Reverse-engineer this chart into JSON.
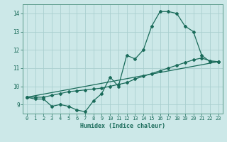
{
  "xlabel": "Humidex (Indice chaleur)",
  "ylabel": "",
  "bg_color": "#cce8e8",
  "grid_color": "#aacfcf",
  "line_color": "#1a6b5a",
  "spine_color": "#5a9a8a",
  "ylim": [
    8.5,
    14.5
  ],
  "xlim": [
    -0.5,
    23.5
  ],
  "yticks": [
    9,
    10,
    11,
    12,
    13,
    14
  ],
  "xticks": [
    0,
    1,
    2,
    3,
    4,
    5,
    6,
    7,
    8,
    9,
    10,
    11,
    12,
    13,
    14,
    15,
    16,
    17,
    18,
    19,
    20,
    21,
    22,
    23
  ],
  "series1_x": [
    0,
    1,
    2,
    3,
    4,
    5,
    6,
    7,
    8,
    9,
    10,
    11,
    12,
    13,
    14,
    15,
    16,
    17,
    18,
    19,
    20,
    21,
    22,
    23
  ],
  "series1_y": [
    9.4,
    9.3,
    9.3,
    8.9,
    9.0,
    8.9,
    8.7,
    8.6,
    9.2,
    9.6,
    10.5,
    10.0,
    11.7,
    11.5,
    12.0,
    13.3,
    14.1,
    14.1,
    14.0,
    13.3,
    13.0,
    11.7,
    11.35,
    11.35
  ],
  "series2_x": [
    0,
    1,
    2,
    3,
    4,
    5,
    6,
    7,
    8,
    9,
    10,
    11,
    12,
    13,
    14,
    15,
    16,
    17,
    18,
    19,
    20,
    21,
    22,
    23
  ],
  "series2_y": [
    9.4,
    9.4,
    9.4,
    9.5,
    9.6,
    9.7,
    9.75,
    9.8,
    9.85,
    9.9,
    10.0,
    10.1,
    10.2,
    10.4,
    10.55,
    10.7,
    10.85,
    11.0,
    11.15,
    11.3,
    11.45,
    11.55,
    11.4,
    11.35
  ],
  "series3_x": [
    0,
    23
  ],
  "series3_y": [
    9.4,
    11.35
  ],
  "marker": "D",
  "markersize": 2.0,
  "linewidth": 0.9
}
